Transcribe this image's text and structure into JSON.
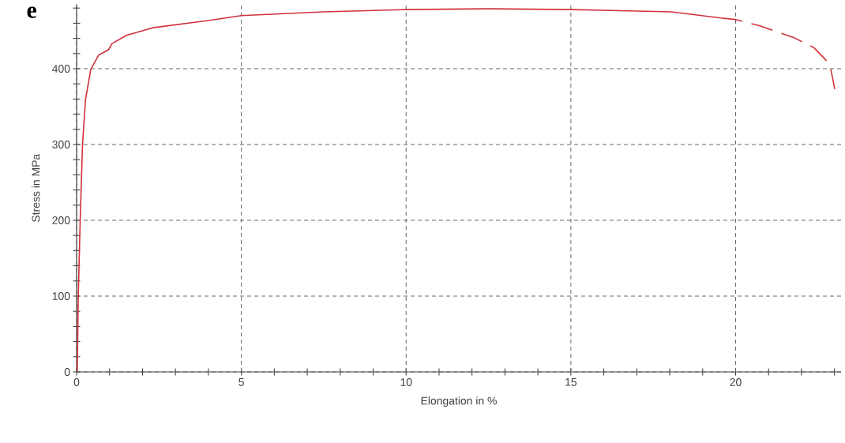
{
  "chart_data": {
    "type": "line",
    "xlabel": "Elongation in %",
    "ylabel": "Stress in MPa",
    "annotations": [
      "e"
    ],
    "xlim": [
      0,
      23.2
    ],
    "ylim": [
      0,
      485
    ],
    "xticks": [
      0,
      {
        "value": 1,
        "label": null
      },
      {
        "value": 2,
        "label": null
      },
      {
        "value": 3,
        "label": null
      },
      {
        "value": 4,
        "label": null
      },
      5,
      {
        "value": 6,
        "label": null
      },
      {
        "value": 7,
        "label": null
      },
      {
        "value": 8,
        "label": null
      },
      {
        "value": 9,
        "label": null
      },
      10,
      {
        "value": 11,
        "label": null
      },
      {
        "value": 12,
        "label": null
      },
      {
        "value": 13,
        "label": null
      },
      {
        "value": 14,
        "label": null
      },
      15,
      {
        "value": 16,
        "label": null
      },
      {
        "value": 17,
        "label": null
      },
      {
        "value": 18,
        "label": null
      },
      {
        "value": 19,
        "label": null
      },
      20,
      {
        "value": 21,
        "label": null
      },
      {
        "value": 22,
        "label": null
      },
      {
        "value": 23,
        "label": null
      }
    ],
    "yticks": [
      0,
      {
        "value": 20,
        "label": null
      },
      {
        "value": 40,
        "label": null
      },
      {
        "value": 60,
        "label": null
      },
      {
        "value": 80,
        "label": null
      },
      100,
      {
        "value": 120,
        "label": null
      },
      {
        "value": 140,
        "label": null
      },
      {
        "value": 160,
        "label": null
      },
      {
        "value": 180,
        "label": null
      },
      200,
      {
        "value": 220,
        "label": null
      },
      {
        "value": 240,
        "label": null
      },
      {
        "value": 260,
        "label": null
      },
      {
        "value": 280,
        "label": null
      },
      300,
      {
        "value": 320,
        "label": null
      },
      {
        "value": 340,
        "label": null
      },
      {
        "value": 360,
        "label": null
      },
      {
        "value": 380,
        "label": null
      },
      400,
      {
        "value": 420,
        "label": null
      },
      {
        "value": 440,
        "label": null
      },
      {
        "value": 460,
        "label": null
      },
      {
        "value": 480,
        "label": null
      }
    ],
    "grid": true,
    "series": [
      {
        "color": "#d1303c",
        "line_style": "solid",
        "x": [
          0.02,
          0.05,
          0.11,
          0.18,
          0.27,
          0.43,
          0.67,
          0.97,
          1.07,
          1.51,
          2.31,
          3.91,
          5,
          7.5,
          10,
          12.5,
          15,
          18.06,
          19.54
        ],
        "values": [
          1,
          98,
          202,
          300,
          359,
          399,
          418,
          425,
          433,
          444,
          454,
          463,
          470,
          475,
          478,
          479,
          478,
          475,
          467
        ]
      },
      {
        "color": "#d1303c",
        "line_style": "dashed",
        "x": [
          19.54,
          19.98,
          20.7,
          21.77,
          22.37,
          22.77,
          22.89,
          23.01
        ],
        "values": [
          467,
          465,
          457,
          441,
          428,
          410,
          399,
          373
        ]
      }
    ]
  }
}
